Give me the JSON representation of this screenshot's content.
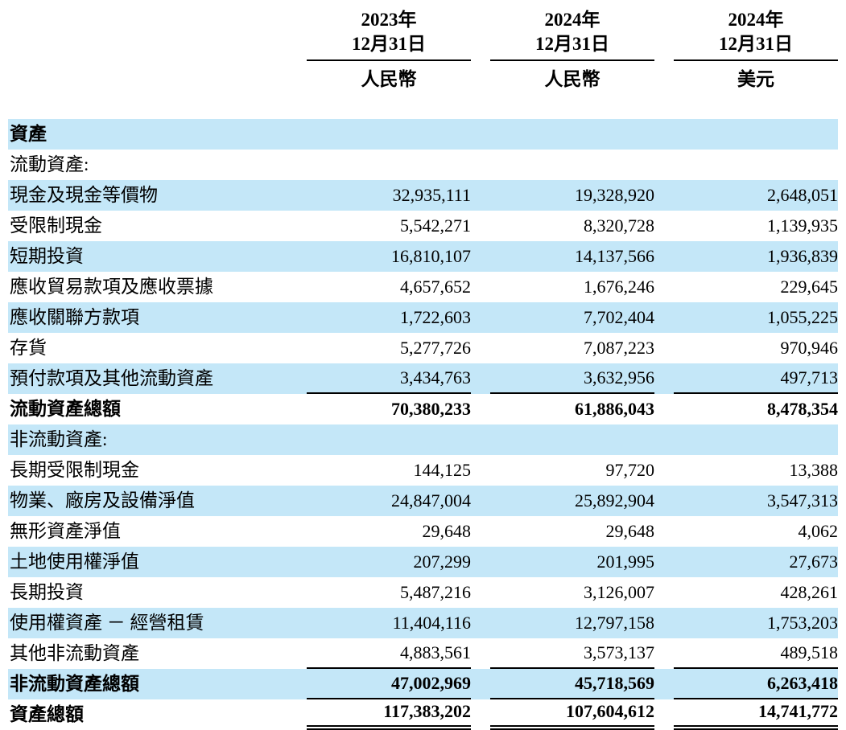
{
  "header": {
    "columns": [
      {
        "year": "2023年",
        "date": "12月31日",
        "currency": "人民幣"
      },
      {
        "year": "2024年",
        "date": "12月31日",
        "currency": "人民幣"
      },
      {
        "year": "2024年",
        "date": "12月31日",
        "currency": "美元"
      }
    ]
  },
  "table": {
    "rows": [
      {
        "label": "資產",
        "values": [
          "",
          "",
          ""
        ],
        "bold": true
      },
      {
        "label": "流動資產:",
        "values": [
          "",
          "",
          ""
        ]
      },
      {
        "label": "現金及現金等價物",
        "values": [
          "32,935,111",
          "19,328,920",
          "2,648,051"
        ]
      },
      {
        "label": "受限制現金",
        "values": [
          "5,542,271",
          "8,320,728",
          "1,139,935"
        ]
      },
      {
        "label": "短期投資",
        "values": [
          "16,810,107",
          "14,137,566",
          "1,936,839"
        ]
      },
      {
        "label": "應收貿易款項及應收票據",
        "values": [
          "4,657,652",
          "1,676,246",
          "229,645"
        ]
      },
      {
        "label": "應收關聯方款項",
        "values": [
          "1,722,603",
          "7,702,404",
          "1,055,225"
        ]
      },
      {
        "label": "存貨",
        "values": [
          "5,277,726",
          "7,087,223",
          "970,946"
        ]
      },
      {
        "label": "預付款項及其他流動資產",
        "values": [
          "3,434,763",
          "3,632,956",
          "497,713"
        ],
        "rule": true
      },
      {
        "label": "流動資產總額",
        "values": [
          "70,380,233",
          "61,886,043",
          "8,478,354"
        ],
        "bold": true
      },
      {
        "label": "非流動資產:",
        "values": [
          "",
          "",
          ""
        ]
      },
      {
        "label": "長期受限制現金",
        "values": [
          "144,125",
          "97,720",
          "13,388"
        ]
      },
      {
        "label": "物業、廠房及設備淨值",
        "values": [
          "24,847,004",
          "25,892,904",
          "3,547,313"
        ]
      },
      {
        "label": "無形資產淨值",
        "values": [
          "29,648",
          "29,648",
          "4,062"
        ]
      },
      {
        "label": "土地使用權淨值",
        "values": [
          "207,299",
          "201,995",
          "27,673"
        ]
      },
      {
        "label": "長期投資",
        "values": [
          "5,487,216",
          "3,126,007",
          "428,261"
        ]
      },
      {
        "label": "使用權資產 － 經營租賃",
        "values": [
          "11,404,116",
          "12,797,158",
          "1,753,203"
        ]
      },
      {
        "label": "其他非流動資產",
        "values": [
          "4,883,561",
          "3,573,137",
          "489,518"
        ],
        "rule": true
      },
      {
        "label": "非流動資產總額",
        "values": [
          "47,002,969",
          "45,718,569",
          "6,263,418"
        ],
        "bold": true,
        "rule": true
      },
      {
        "label": "資產總額",
        "values": [
          "117,383,202",
          "107,604,612",
          "14,741,772"
        ],
        "bold": true,
        "double": true
      }
    ]
  },
  "colors": {
    "row_highlight": "#c4e7f8"
  }
}
